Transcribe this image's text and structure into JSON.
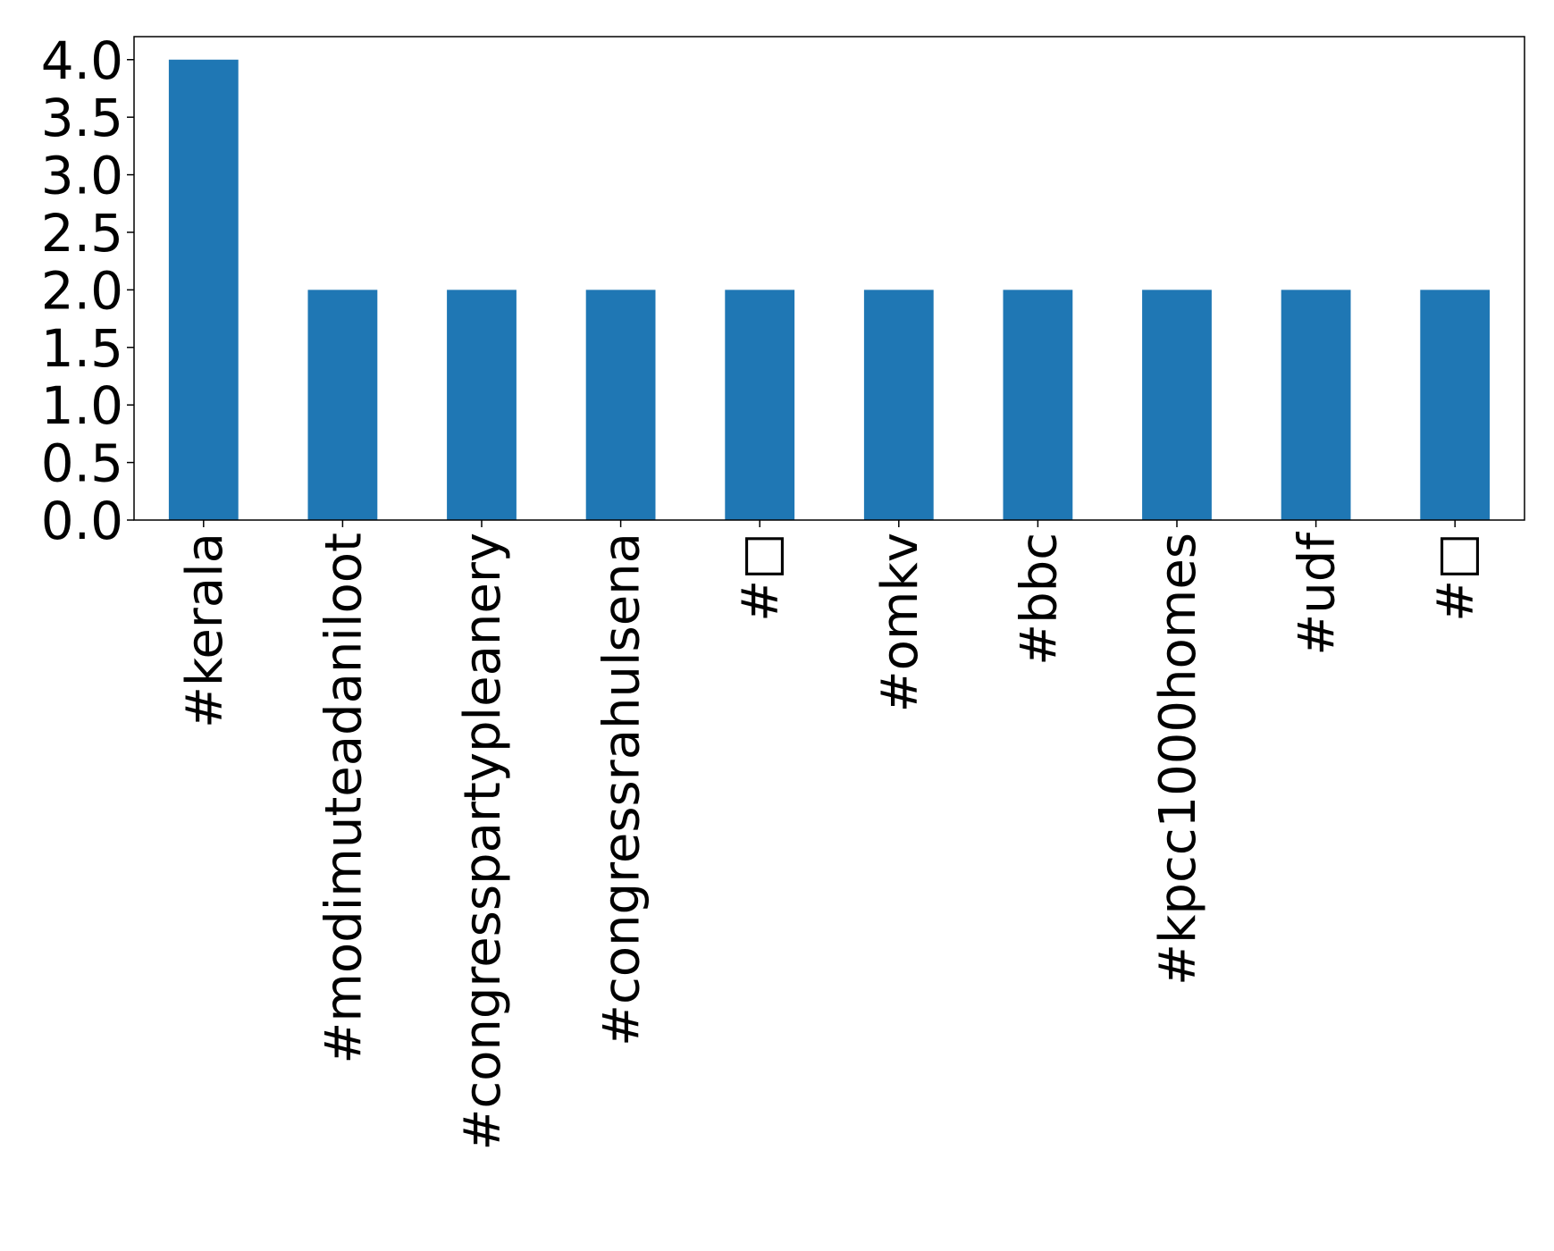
{
  "chart_data": {
    "type": "bar",
    "title": "",
    "xlabel": "",
    "ylabel": "",
    "categories": [
      "#kerala",
      "#modimuteadaniloot",
      "#congresspartypleanery",
      "#congressrahulsena",
      "#□",
      "#omkv",
      "#bbc",
      "#kpcc1000homes",
      "#udf",
      "#□"
    ],
    "values": [
      4,
      2,
      2,
      2,
      2,
      2,
      2,
      2,
      2,
      2
    ],
    "ylim": [
      0,
      4.2
    ],
    "yticks": [
      "0.0",
      "0.5",
      "1.0",
      "1.5",
      "2.0",
      "2.5",
      "3.0",
      "3.5",
      "4.0"
    ],
    "bar_color": "#1f77b4",
    "grid": false,
    "legend": "none"
  }
}
